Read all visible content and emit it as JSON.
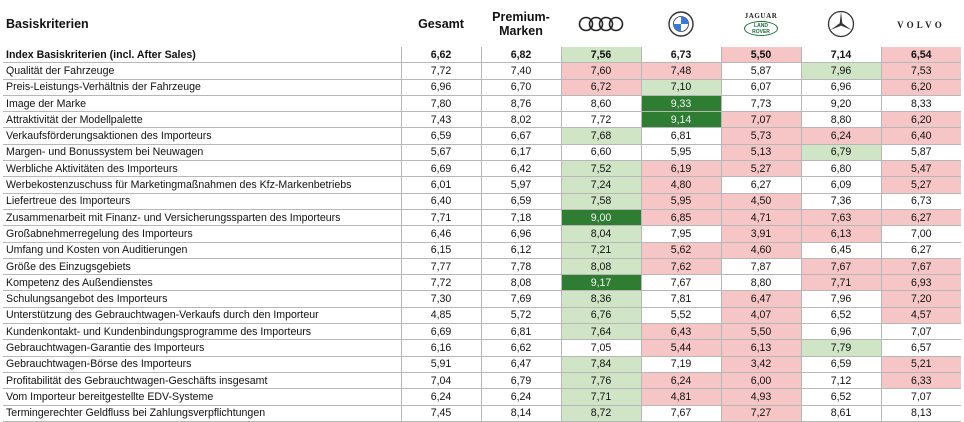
{
  "header": {
    "criteria_label": "Basiskriterien",
    "col_gesamt": "Gesamt",
    "col_premium_line1": "Premium-",
    "col_premium_line2": "Marken",
    "brands": {
      "audi": "audi-logo",
      "bmw": "bmw-logo",
      "jaguar_text": "JAGUAR",
      "landrover_line1": "LAND",
      "landrover_line2": "ROVER",
      "mercedes": "mercedes-logo",
      "volvo_text": "VOLVO"
    }
  },
  "colors": {
    "red": "#f6c6c6",
    "light_green": "#cfe5c6",
    "dark_green": "#2f7d33"
  },
  "rows": [
    {
      "label": "Index Basiskriterien (incl. After Sales)",
      "bold": true,
      "values": [
        "6,62",
        "6,82",
        "7,56",
        "6,73",
        "5,50",
        "7,14",
        "6,54"
      ],
      "shading": [
        "",
        "",
        "lg",
        "",
        "red",
        "",
        "red"
      ]
    },
    {
      "label": "Qualität der Fahrzeuge",
      "values": [
        "7,72",
        "7,40",
        "7,60",
        "7,48",
        "5,87",
        "7,96",
        "7,53"
      ],
      "shading": [
        "",
        "",
        "red",
        "red",
        "",
        "lg",
        "red"
      ]
    },
    {
      "label": "Preis-Leistungs-Verhältnis der Fahrzeuge",
      "values": [
        "6,96",
        "6,70",
        "6,72",
        "7,10",
        "6,07",
        "6,96",
        "6,20"
      ],
      "shading": [
        "",
        "",
        "red",
        "lg",
        "",
        "",
        "red"
      ]
    },
    {
      "label": "Image der Marke",
      "values": [
        "7,80",
        "8,76",
        "8,60",
        "9,33",
        "7,73",
        "9,20",
        "8,33"
      ],
      "shading": [
        "",
        "",
        "",
        "dg",
        "",
        "",
        ""
      ]
    },
    {
      "label": "Attraktivität der Modellpalette",
      "values": [
        "7,43",
        "8,02",
        "7,72",
        "9,14",
        "7,07",
        "8,80",
        "6,20"
      ],
      "shading": [
        "",
        "",
        "",
        "dg",
        "red",
        "",
        "red"
      ]
    },
    {
      "label": "Verkaufsförderungsaktionen des Importeurs",
      "values": [
        "6,59",
        "6,67",
        "7,68",
        "6,81",
        "5,73",
        "6,24",
        "6,40"
      ],
      "shading": [
        "",
        "",
        "lg",
        "",
        "red",
        "red",
        "red"
      ]
    },
    {
      "label": "Margen- und Bonussystem bei Neuwagen",
      "values": [
        "5,67",
        "6,17",
        "6,60",
        "5,95",
        "5,13",
        "6,79",
        "5,87"
      ],
      "shading": [
        "",
        "",
        "",
        "",
        "red",
        "lg",
        ""
      ]
    },
    {
      "label": "Werbliche Aktivitäten des Importeurs",
      "values": [
        "6,69",
        "6,42",
        "7,52",
        "6,19",
        "5,27",
        "6,80",
        "5,47"
      ],
      "shading": [
        "",
        "",
        "lg",
        "red",
        "red",
        "",
        "red"
      ]
    },
    {
      "label": "Werbekostenzuschuss für Marketingmaßnahmen des Kfz-Markenbetriebs",
      "values": [
        "6,01",
        "5,97",
        "7,24",
        "4,80",
        "6,27",
        "6,09",
        "5,27"
      ],
      "shading": [
        "",
        "",
        "lg",
        "red",
        "",
        "",
        "red"
      ]
    },
    {
      "label": "Liefertreue des Importeurs",
      "values": [
        "6,40",
        "6,59",
        "7,58",
        "5,95",
        "4,50",
        "7,36",
        "6,73"
      ],
      "shading": [
        "",
        "",
        "lg",
        "red",
        "red",
        "",
        ""
      ]
    },
    {
      "label": "Zusammenarbeit mit Finanz- und Versicherungssparten des Importeurs",
      "values": [
        "7,71",
        "7,18",
        "9,00",
        "6,85",
        "4,71",
        "7,63",
        "6,27"
      ],
      "shading": [
        "",
        "",
        "dg",
        "red",
        "red",
        "red",
        "red"
      ]
    },
    {
      "label": "Großabnehmerregelung des Importeurs",
      "values": [
        "6,46",
        "6,96",
        "8,04",
        "7,95",
        "3,91",
        "6,13",
        "7,00"
      ],
      "shading": [
        "",
        "",
        "lg",
        "",
        "red",
        "red",
        ""
      ]
    },
    {
      "label": "Umfang und Kosten von Auditierungen",
      "values": [
        "6,15",
        "6,12",
        "7,21",
        "5,62",
        "4,60",
        "6,45",
        "6,27"
      ],
      "shading": [
        "",
        "",
        "lg",
        "red",
        "red",
        "",
        ""
      ]
    },
    {
      "label": "Größe des Einzugsgebiets",
      "values": [
        "7,77",
        "7,78",
        "8,08",
        "7,62",
        "7,87",
        "7,67",
        "7,67"
      ],
      "shading": [
        "",
        "",
        "lg",
        "red",
        "",
        "red",
        "red"
      ]
    },
    {
      "label": "Kompetenz des Außendienstes",
      "values": [
        "7,72",
        "8,08",
        "9,17",
        "7,67",
        "8,80",
        "7,71",
        "6,93"
      ],
      "shading": [
        "",
        "",
        "dg",
        "",
        "",
        "red",
        "red"
      ]
    },
    {
      "label": "Schulungsangebot des Importeurs",
      "values": [
        "7,30",
        "7,69",
        "8,36",
        "7,81",
        "6,47",
        "7,96",
        "7,20"
      ],
      "shading": [
        "",
        "",
        "lg",
        "",
        "red",
        "",
        "red"
      ]
    },
    {
      "label": "Unterstützung des Gebrauchtwagen-Verkaufs durch den Importeur",
      "values": [
        "4,85",
        "5,72",
        "6,76",
        "5,52",
        "4,07",
        "6,52",
        "4,57"
      ],
      "shading": [
        "",
        "",
        "lg",
        "",
        "red",
        "",
        "red"
      ]
    },
    {
      "label": "Kundenkontakt- und Kundenbindungsprogramme des Importeurs",
      "values": [
        "6,69",
        "6,81",
        "7,64",
        "6,43",
        "5,50",
        "6,96",
        "7,07"
      ],
      "shading": [
        "",
        "",
        "lg",
        "red",
        "red",
        "",
        ""
      ]
    },
    {
      "label": "Gebrauchtwagen-Garantie des Importeurs",
      "values": [
        "6,16",
        "6,62",
        "7,05",
        "5,44",
        "6,13",
        "7,79",
        "6,57"
      ],
      "shading": [
        "",
        "",
        "",
        "red",
        "red",
        "lg",
        ""
      ]
    },
    {
      "label": "Gebrauchtwagen-Börse des Importeurs",
      "values": [
        "5,91",
        "6,47",
        "7,84",
        "7,19",
        "3,42",
        "6,59",
        "5,21"
      ],
      "shading": [
        "",
        "",
        "lg",
        "",
        "red",
        "",
        "red"
      ]
    },
    {
      "label": "Profitabilität des Gebrauchtwagen-Geschäfts insgesamt",
      "values": [
        "7,04",
        "6,79",
        "7,76",
        "6,24",
        "6,00",
        "7,12",
        "6,33"
      ],
      "shading": [
        "",
        "",
        "lg",
        "red",
        "red",
        "",
        "red"
      ]
    },
    {
      "label": "Vom Importeur bereitgestellte EDV-Systeme",
      "values": [
        "6,24",
        "6,24",
        "7,71",
        "4,81",
        "4,93",
        "6,52",
        "7,07"
      ],
      "shading": [
        "",
        "",
        "lg",
        "red",
        "red",
        "",
        ""
      ]
    },
    {
      "label": "Termingerechter Geldfluss bei Zahlungsverpflichtungen",
      "values": [
        "7,45",
        "8,14",
        "8,72",
        "7,67",
        "7,27",
        "8,61",
        "8,13"
      ],
      "shading": [
        "",
        "",
        "lg",
        "",
        "red",
        "",
        ""
      ]
    }
  ]
}
